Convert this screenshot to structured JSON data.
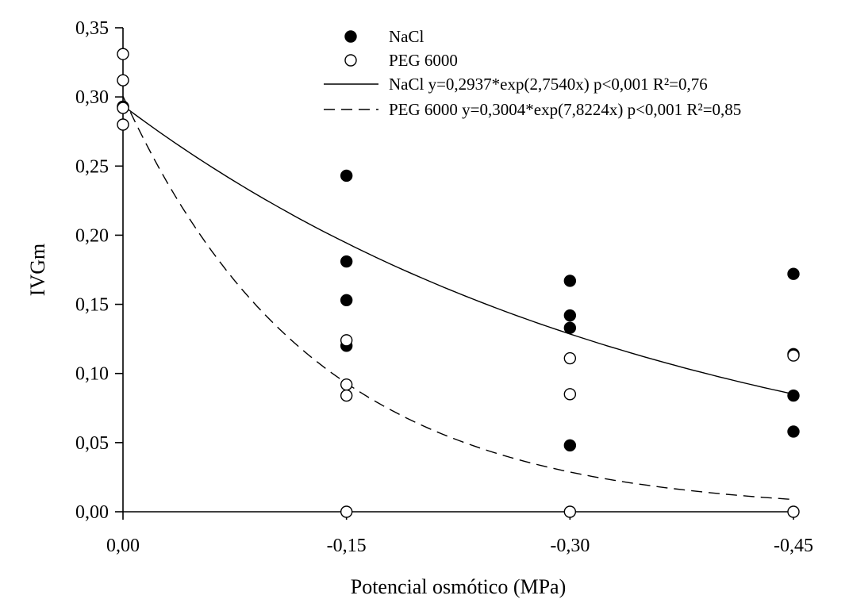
{
  "chart_data": {
    "type": "scatter",
    "xlabel": "Potencial osmótico (MPa)",
    "ylabel": "IVGm",
    "x_ticks": [
      {
        "value": 0.0,
        "label": "0,00"
      },
      {
        "value": -0.15,
        "label": "-0,15"
      },
      {
        "value": -0.3,
        "label": "-0,30"
      },
      {
        "value": -0.45,
        "label": "-0,45"
      }
    ],
    "y_ticks": [
      {
        "value": 0.0,
        "label": "0,00"
      },
      {
        "value": 0.05,
        "label": "0,05"
      },
      {
        "value": 0.1,
        "label": "0,10"
      },
      {
        "value": 0.15,
        "label": "0,15"
      },
      {
        "value": 0.2,
        "label": "0,20"
      },
      {
        "value": 0.25,
        "label": "0,25"
      },
      {
        "value": 0.3,
        "label": "0,30"
      },
      {
        "value": 0.35,
        "label": "0,35"
      }
    ],
    "xlim": [
      0.0,
      -0.45
    ],
    "ylim": [
      0.0,
      0.35
    ],
    "grid": false,
    "legend_position": "top-right",
    "series": [
      {
        "name": "NaCl",
        "marker": "filled-circle",
        "color": "#000000",
        "points": [
          {
            "x": 0.0,
            "y": 0.293
          },
          {
            "x": -0.15,
            "y": 0.243
          },
          {
            "x": -0.15,
            "y": 0.181
          },
          {
            "x": -0.15,
            "y": 0.153
          },
          {
            "x": -0.15,
            "y": 0.12
          },
          {
            "x": -0.3,
            "y": 0.167
          },
          {
            "x": -0.3,
            "y": 0.142
          },
          {
            "x": -0.3,
            "y": 0.133
          },
          {
            "x": -0.3,
            "y": 0.048
          },
          {
            "x": -0.45,
            "y": 0.172
          },
          {
            "x": -0.45,
            "y": 0.114
          },
          {
            "x": -0.45,
            "y": 0.084
          },
          {
            "x": -0.45,
            "y": 0.058
          }
        ]
      },
      {
        "name": "PEG 6000",
        "marker": "open-circle",
        "color": "#000000",
        "points": [
          {
            "x": 0.0,
            "y": 0.331
          },
          {
            "x": 0.0,
            "y": 0.312
          },
          {
            "x": 0.0,
            "y": 0.292
          },
          {
            "x": 0.0,
            "y": 0.28
          },
          {
            "x": -0.15,
            "y": 0.124
          },
          {
            "x": -0.15,
            "y": 0.092
          },
          {
            "x": -0.15,
            "y": 0.084
          },
          {
            "x": -0.15,
            "y": 0.0
          },
          {
            "x": -0.3,
            "y": 0.111
          },
          {
            "x": -0.3,
            "y": 0.085
          },
          {
            "x": -0.3,
            "y": 0.0
          },
          {
            "x": -0.45,
            "y": 0.113
          },
          {
            "x": -0.45,
            "y": 0.0
          }
        ]
      }
    ],
    "fits": [
      {
        "label": "NaCl y=0,2937*exp(2,7540x) p<0,001 R²=0,76",
        "style": "solid",
        "a": 0.2937,
        "b": 2.754
      },
      {
        "label": "PEG 6000 y=0,3004*exp(7,8224x) p<0,001 R²=0,85",
        "style": "dashed",
        "a": 0.3004,
        "b": 7.8224
      }
    ]
  }
}
